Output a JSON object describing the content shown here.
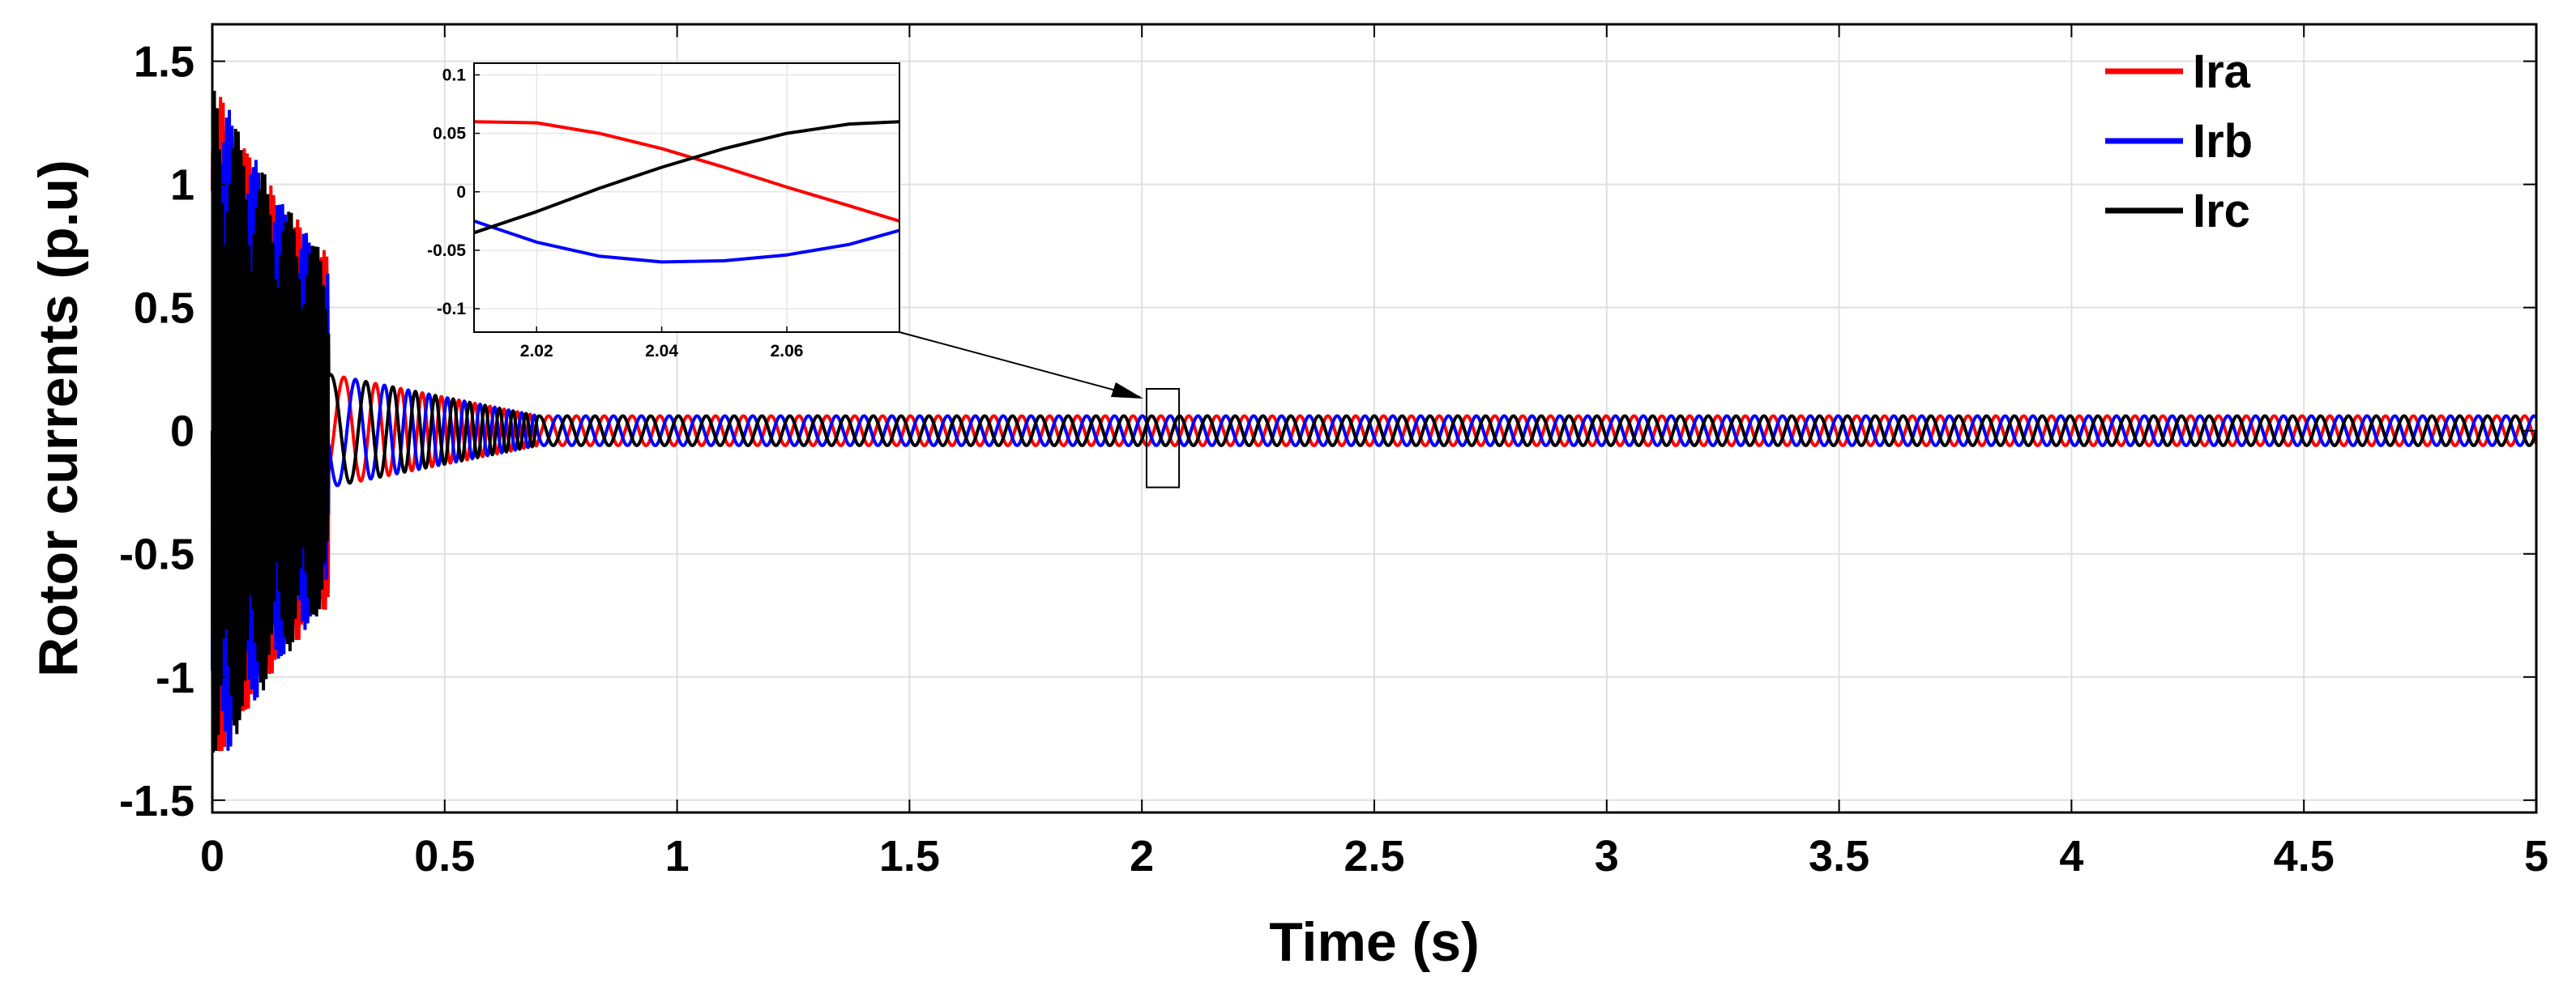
{
  "chart_data": [
    {
      "type": "line",
      "xlabel": "Time (s)",
      "ylabel": "Rotor currents (p.u)",
      "xlim": [
        0,
        5
      ],
      "ylim": [
        -1.55,
        1.65
      ],
      "xticks": [
        0,
        0.5,
        1,
        1.5,
        2,
        2.5,
        3,
        3.5,
        4,
        4.5,
        5
      ],
      "xtick_labels": [
        "0",
        "0.5",
        "1",
        "1.5",
        "2",
        "2.5",
        "3",
        "3.5",
        "4",
        "4.5",
        "5"
      ],
      "yticks": [
        -1.5,
        -1,
        -0.5,
        0,
        0.5,
        1,
        1.5
      ],
      "ytick_labels": [
        "-1.5",
        "-1",
        "-0.5",
        "0",
        "0.5",
        "1",
        "1.5"
      ],
      "grid": true,
      "legend_position": "top-right",
      "series": [
        {
          "name": "Ira",
          "color": "#ff0000",
          "steady_amplitude": 0.06,
          "steady_frequency_hz": 16.7,
          "phase_deg": 60
        },
        {
          "name": "Irb",
          "color": "#0000ff",
          "steady_amplitude": 0.06,
          "steady_frequency_hz": 16.7,
          "phase_deg": -60
        },
        {
          "name": "Irc",
          "color": "#000000",
          "steady_amplitude": 0.06,
          "steady_frequency_hz": 16.7,
          "phase_deg": 180
        }
      ],
      "transient": {
        "interval_s": [
          0,
          0.25
        ],
        "peak_amplitude": 1.33,
        "settling_end_s": 0.7
      },
      "zoom_region": {
        "x": [
          2.01,
          2.08
        ],
        "y": [
          -0.23,
          0.17
        ]
      }
    },
    {
      "type": "line",
      "role": "inset",
      "xlim": [
        2.01,
        2.078
      ],
      "ylim": [
        -0.12,
        0.11
      ],
      "xticks": [
        2.02,
        2.04,
        2.06
      ],
      "xtick_labels": [
        "2.02",
        "2.04",
        "2.06"
      ],
      "yticks": [
        -0.1,
        -0.05,
        0,
        0.05,
        0.1
      ],
      "ytick_labels": [
        "-0.1",
        "-0.05",
        "0",
        "0.05",
        "0.1"
      ],
      "grid": true,
      "series": [
        {
          "name": "Ira",
          "x": [
            2.01,
            2.02,
            2.03,
            2.04,
            2.05,
            2.06,
            2.07,
            2.078
          ],
          "y": [
            0.06,
            0.059,
            0.05,
            0.037,
            0.021,
            0.004,
            -0.012,
            -0.025
          ]
        },
        {
          "name": "Irb",
          "x": [
            2.01,
            2.02,
            2.03,
            2.04,
            2.05,
            2.06,
            2.07,
            2.078
          ],
          "y": [
            -0.025,
            -0.043,
            -0.055,
            -0.06,
            -0.059,
            -0.054,
            -0.045,
            -0.033
          ]
        },
        {
          "name": "Irc",
          "x": [
            2.01,
            2.02,
            2.03,
            2.04,
            2.05,
            2.06,
            2.07,
            2.078
          ],
          "y": [
            -0.035,
            -0.017,
            0.003,
            0.021,
            0.037,
            0.05,
            0.058,
            0.06
          ]
        }
      ]
    }
  ]
}
